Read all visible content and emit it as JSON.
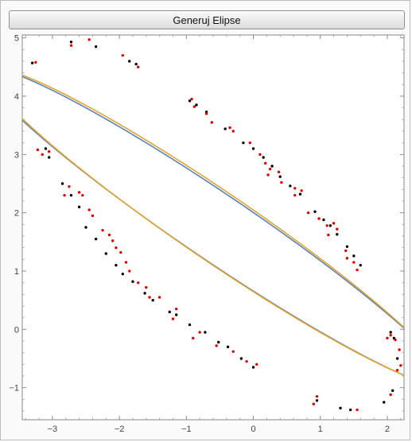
{
  "generate_button": {
    "label": "Generuj Elipse"
  },
  "chart_data": {
    "type": "scatter",
    "title": "",
    "xlabel": "",
    "ylabel": "",
    "xlim": [
      -3.45,
      2.25
    ],
    "ylim": [
      -1.55,
      5.05
    ],
    "x_ticks": [
      -3,
      -2,
      -1,
      0,
      1,
      2
    ],
    "y_ticks": [
      -1,
      0,
      1,
      2,
      3,
      4,
      5
    ],
    "x_tick_labels": [
      "−3",
      "−2",
      "−1",
      "0",
      "1",
      "2"
    ],
    "y_tick_labels": [
      "−1",
      "0",
      "1",
      "2",
      "3",
      "4",
      "5"
    ],
    "grid": false,
    "series": [
      {
        "kind": "curve",
        "color": "#5a82b4",
        "ellipse": {
          "center": [
            -0.55,
            1.75
          ],
          "semi_major": 4.38,
          "semi_minor": 0.54,
          "angle_deg": -38.0
        }
      },
      {
        "kind": "curve",
        "color": "#e3a530",
        "ellipse": {
          "center": [
            -0.54,
            1.76
          ],
          "semi_major": 4.33,
          "semi_minor": 0.56,
          "angle_deg": -38.2
        }
      },
      {
        "kind": "points",
        "color": "#000000",
        "points": [
          [
            -3.3,
            4.57
          ],
          [
            -2.72,
            4.93
          ],
          [
            -2.35,
            4.85
          ],
          [
            -1.85,
            4.6
          ],
          [
            -1.75,
            4.55
          ],
          [
            -0.95,
            3.92
          ],
          [
            -0.85,
            3.85
          ],
          [
            -0.7,
            3.73
          ],
          [
            -0.42,
            3.44
          ],
          [
            -0.15,
            3.2
          ],
          [
            0.0,
            3.1
          ],
          [
            0.15,
            2.95
          ],
          [
            0.28,
            2.8
          ],
          [
            0.4,
            2.62
          ],
          [
            0.55,
            2.46
          ],
          [
            0.7,
            2.32
          ],
          [
            0.92,
            2.02
          ],
          [
            1.05,
            1.88
          ],
          [
            1.15,
            1.78
          ],
          [
            1.25,
            1.63
          ],
          [
            1.4,
            1.42
          ],
          [
            1.5,
            1.26
          ],
          [
            1.6,
            1.1
          ],
          [
            2.05,
            -0.05
          ],
          [
            2.1,
            -0.15
          ],
          [
            2.15,
            -0.5
          ],
          [
            2.08,
            -1.05
          ],
          [
            1.95,
            -1.25
          ],
          [
            1.45,
            -1.38
          ],
          [
            1.3,
            -1.35
          ],
          [
            0.95,
            -1.22
          ],
          [
            0.0,
            -0.65
          ],
          [
            -0.18,
            -0.5
          ],
          [
            -0.38,
            -0.3
          ],
          [
            -0.52,
            -0.22
          ],
          [
            -0.72,
            -0.05
          ],
          [
            -0.95,
            0.08
          ],
          [
            -1.15,
            0.25
          ],
          [
            -1.25,
            0.3
          ],
          [
            -1.5,
            0.5
          ],
          [
            -1.62,
            0.62
          ],
          [
            -1.8,
            0.82
          ],
          [
            -1.95,
            0.95
          ],
          [
            -2.05,
            1.1
          ],
          [
            -2.2,
            1.3
          ],
          [
            -2.35,
            1.55
          ],
          [
            -2.5,
            1.75
          ],
          [
            -2.6,
            2.1
          ],
          [
            -2.72,
            2.3
          ],
          [
            -2.85,
            2.5
          ],
          [
            -3.05,
            2.95
          ],
          [
            -3.1,
            3.1
          ]
        ]
      },
      {
        "kind": "points",
        "color": "#e00000",
        "points": [
          [
            -3.25,
            4.58
          ],
          [
            -2.72,
            4.87
          ],
          [
            -2.45,
            4.97
          ],
          [
            -1.95,
            4.7
          ],
          [
            -1.72,
            4.5
          ],
          [
            -0.92,
            3.95
          ],
          [
            -0.88,
            3.82
          ],
          [
            -0.7,
            3.7
          ],
          [
            -0.62,
            3.55
          ],
          [
            -0.35,
            3.46
          ],
          [
            -0.3,
            3.4
          ],
          [
            -0.05,
            3.2
          ],
          [
            0.1,
            3.0
          ],
          [
            0.18,
            2.85
          ],
          [
            0.25,
            2.75
          ],
          [
            0.22,
            2.65
          ],
          [
            0.38,
            2.7
          ],
          [
            0.42,
            2.52
          ],
          [
            0.62,
            2.42
          ],
          [
            0.72,
            2.38
          ],
          [
            0.62,
            2.3
          ],
          [
            0.82,
            2.0
          ],
          [
            0.98,
            1.9
          ],
          [
            1.1,
            1.78
          ],
          [
            1.2,
            1.82
          ],
          [
            1.25,
            1.72
          ],
          [
            1.12,
            1.62
          ],
          [
            1.38,
            1.35
          ],
          [
            1.4,
            1.22
          ],
          [
            1.5,
            1.15
          ],
          [
            1.55,
            1.02
          ],
          [
            2.0,
            -0.15
          ],
          [
            2.05,
            -0.1
          ],
          [
            2.12,
            -0.18
          ],
          [
            2.18,
            -0.35
          ],
          [
            2.2,
            -0.62
          ],
          [
            2.15,
            -0.7
          ],
          [
            2.05,
            -1.12
          ],
          [
            1.55,
            -1.38
          ],
          [
            0.95,
            -1.15
          ],
          [
            0.9,
            -1.28
          ],
          [
            0.05,
            -0.6
          ],
          [
            -0.1,
            -0.55
          ],
          [
            -0.3,
            -0.38
          ],
          [
            -0.55,
            -0.28
          ],
          [
            -0.8,
            -0.05
          ],
          [
            -0.9,
            -0.15
          ],
          [
            -1.15,
            0.35
          ],
          [
            -1.2,
            0.18
          ],
          [
            -1.4,
            0.55
          ],
          [
            -1.55,
            0.55
          ],
          [
            -1.6,
            0.72
          ],
          [
            -1.72,
            0.8
          ],
          [
            -1.85,
            1.0
          ],
          [
            -1.9,
            1.15
          ],
          [
            -1.98,
            1.32
          ],
          [
            -2.05,
            1.4
          ],
          [
            -2.1,
            1.52
          ],
          [
            -2.15,
            1.62
          ],
          [
            -2.25,
            1.7
          ],
          [
            -2.4,
            1.95
          ],
          [
            -2.45,
            2.05
          ],
          [
            -2.55,
            2.3
          ],
          [
            -2.6,
            2.35
          ],
          [
            -2.75,
            2.45
          ],
          [
            -2.82,
            2.3
          ],
          [
            -3.05,
            3.05
          ],
          [
            -3.15,
            3.0
          ],
          [
            -3.22,
            3.08
          ]
        ]
      }
    ]
  }
}
